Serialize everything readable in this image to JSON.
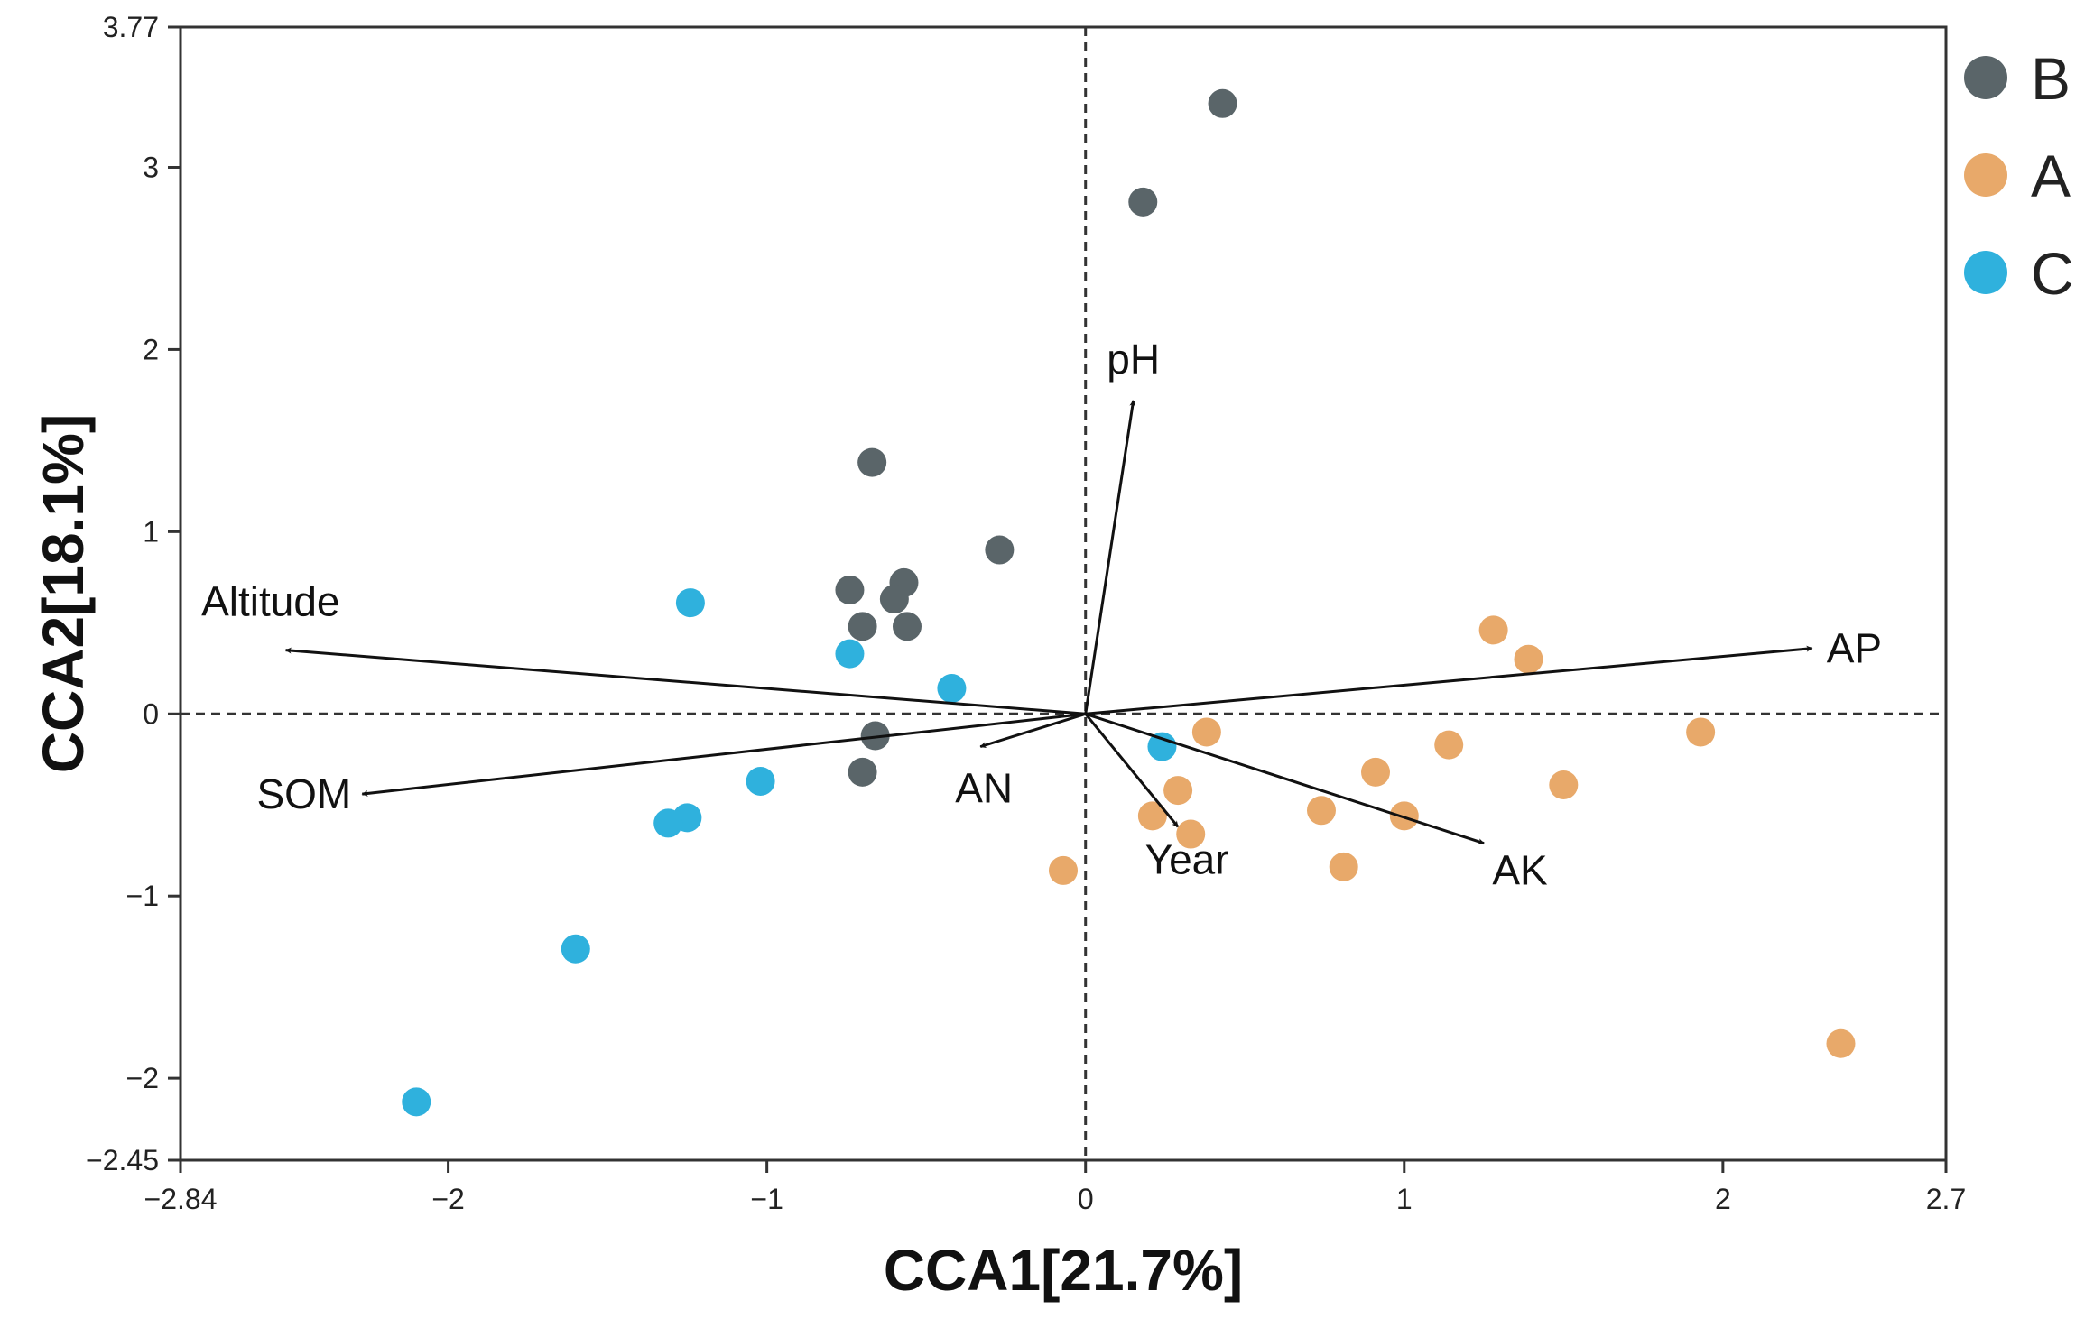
{
  "chart_data": {
    "type": "scatter",
    "subtype": "cca-biplot",
    "xlabel": "CCA1[21.7%]",
    "ylabel": "CCA2[18.1%]",
    "xlim": [
      -2.84,
      2.7
    ],
    "ylim": [
      -2.45,
      3.77
    ],
    "x_ticks": [
      -2.84,
      -2,
      -1,
      0,
      1,
      2,
      2.7
    ],
    "x_tick_labels": [
      "−2.84",
      "−2",
      "−1",
      "0",
      "1",
      "2",
      "2.7"
    ],
    "y_ticks": [
      3.77,
      3,
      2,
      1,
      0,
      -1,
      -2,
      -2.45
    ],
    "y_tick_labels": [
      "3.77",
      "3",
      "2",
      "1",
      "0",
      "−1",
      "−2",
      "−2.45"
    ],
    "zero_lines": "dashed",
    "legend_position": "right",
    "series": [
      {
        "name": "B",
        "color": "#5a6569",
        "points": [
          [
            0.43,
            3.35
          ],
          [
            0.18,
            2.81
          ],
          [
            -0.67,
            1.38
          ],
          [
            -0.27,
            0.9
          ],
          [
            -0.74,
            0.68
          ],
          [
            -0.57,
            0.72
          ],
          [
            -0.6,
            0.63
          ],
          [
            -0.7,
            0.48
          ],
          [
            -0.56,
            0.48
          ],
          [
            -0.66,
            -0.12
          ],
          [
            -0.7,
            -0.32
          ]
        ]
      },
      {
        "name": "A",
        "color": "#e8a96a",
        "points": [
          [
            1.28,
            0.46
          ],
          [
            1.39,
            0.3
          ],
          [
            1.93,
            -0.1
          ],
          [
            0.38,
            -0.1
          ],
          [
            1.14,
            -0.17
          ],
          [
            0.91,
            -0.32
          ],
          [
            1.5,
            -0.39
          ],
          [
            0.29,
            -0.42
          ],
          [
            0.74,
            -0.53
          ],
          [
            1.0,
            -0.56
          ],
          [
            0.21,
            -0.56
          ],
          [
            0.33,
            -0.66
          ],
          [
            0.81,
            -0.84
          ],
          [
            -0.07,
            -0.86
          ],
          [
            2.37,
            -1.81
          ]
        ]
      },
      {
        "name": "C",
        "color": "#2fb1dd",
        "points": [
          [
            -1.24,
            0.61
          ],
          [
            -0.74,
            0.33
          ],
          [
            -0.42,
            0.14
          ],
          [
            0.24,
            -0.18
          ],
          [
            -1.02,
            -0.37
          ],
          [
            -1.25,
            -0.57
          ],
          [
            -1.31,
            -0.6
          ],
          [
            -1.6,
            -1.29
          ],
          [
            -2.1,
            -2.13
          ]
        ]
      }
    ],
    "arrows": [
      {
        "name": "pH",
        "x": 0.15,
        "y": 1.72
      },
      {
        "name": "Altitude",
        "x": -2.51,
        "y": 0.35
      },
      {
        "name": "AP",
        "x": 2.28,
        "y": 0.36
      },
      {
        "name": "SOM",
        "x": -2.27,
        "y": -0.44
      },
      {
        "name": "AN",
        "x": -0.33,
        "y": -0.18
      },
      {
        "name": "Year",
        "x": 0.29,
        "y": -0.62
      },
      {
        "name": "AK",
        "x": 1.25,
        "y": -0.71
      }
    ]
  }
}
